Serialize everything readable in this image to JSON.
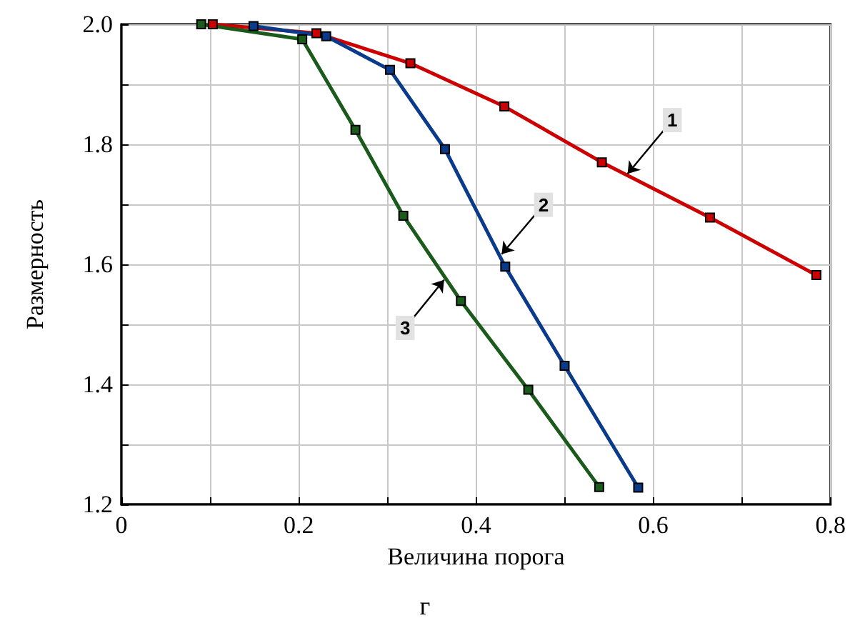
{
  "chart_data": {
    "type": "line",
    "xlabel": "Величина порога",
    "ylabel": "Размерность",
    "xlim": [
      0,
      0.8
    ],
    "xticks": [
      0,
      {
        "value": 0.1,
        "label": null
      },
      0.2,
      {
        "value": 0.3,
        "label": null
      },
      0.4,
      {
        "value": 0.5,
        "label": null
      },
      0.6,
      {
        "value": 0.7,
        "label": null
      },
      0.8
    ],
    "ylim": [
      1.2,
      2.0
    ],
    "yticks": [
      1.2,
      {
        "value": 1.3,
        "label": null
      },
      1.4,
      {
        "value": 1.5,
        "label": null
      },
      1.6,
      {
        "value": 1.7,
        "label": null
      },
      1.8,
      {
        "value": 1.9,
        "label": null
      },
      {
        "value": 2.0,
        "label": "2.0"
      }
    ],
    "grid": true,
    "marker": "square",
    "line_style": "solid",
    "series": [
      {
        "color": "#cc0000",
        "x": [
          0.103,
          0.22,
          0.326,
          0.432,
          0.542,
          0.664,
          0.784
        ],
        "values": [
          2.0,
          1.985,
          1.935,
          1.863,
          1.77,
          1.678,
          1.582
        ]
      },
      {
        "color": "#0a3a8a",
        "x": [
          0.149,
          0.231,
          0.303,
          0.365,
          0.433,
          0.5,
          0.583
        ],
        "values": [
          1.997,
          1.98,
          1.924,
          1.792,
          1.596,
          1.431,
          1.228
        ]
      },
      {
        "color": "#1a5a1a",
        "x": [
          0.09,
          0.204,
          0.264,
          0.318,
          0.383,
          0.459,
          0.539
        ],
        "values": [
          2.0,
          1.975,
          1.824,
          1.681,
          1.539,
          1.391,
          1.229
        ]
      }
    ],
    "annotations": [
      {
        "text": "1",
        "x": 0.571,
        "y": 1.751
      },
      {
        "text": "2",
        "x": 0.429,
        "y": 1.617
      },
      {
        "text": "3",
        "x": 0.364,
        "y": 1.574
      },
      "г"
    ]
  }
}
